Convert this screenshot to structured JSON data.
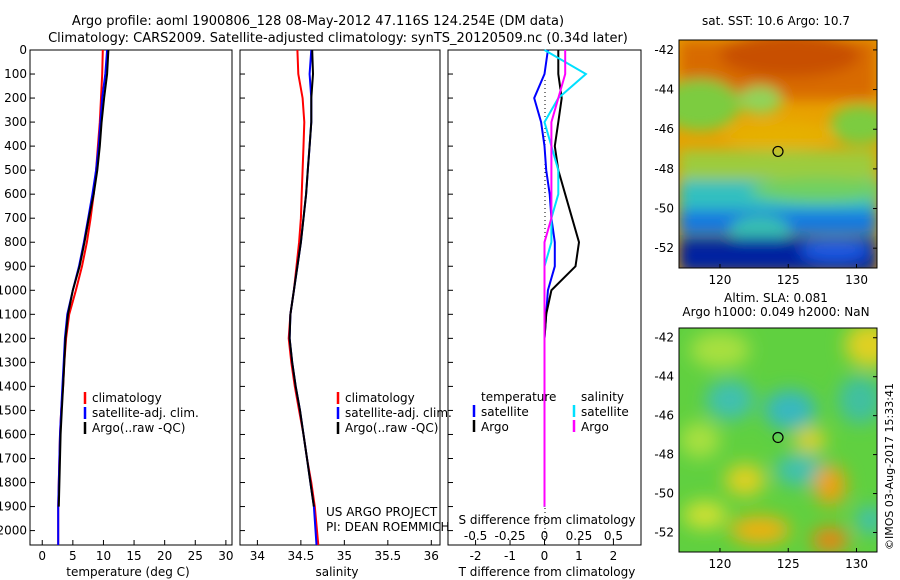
{
  "title": {
    "line1": "Argo profile: aoml 1900806_128 08-May-2012 47.116S 124.254E (DM data)",
    "line2": "Climatology: CARS2009. Satellite-adjusted climatology: synTS_20120509.nc (0.34d later)"
  },
  "colors": {
    "climatology": "#ff0000",
    "satellite": "#0000ff",
    "argo": "#000000",
    "sal_satellite": "#00e0ff",
    "sal_argo": "#ff00ff"
  },
  "panels": {
    "temperature": {
      "xlabel": "temperature (deg C)",
      "xticks": [
        "0",
        "5",
        "10",
        "15",
        "20",
        "25",
        "30"
      ],
      "legend": [
        "climatology",
        "satellite-adj. clim.",
        "Argo(..raw -QC)"
      ]
    },
    "salinity": {
      "xlabel": "salinity",
      "xticks": [
        "34",
        "34.5",
        "35",
        "35.5",
        "36"
      ],
      "legend": [
        "climatology",
        "satellite-adj. clim.",
        "Argo(..raw -QC)"
      ],
      "project_line1": "US ARGO PROJECT",
      "project_line2": "PI: DEAN ROEMMICH"
    },
    "difference": {
      "xlabel": "T difference from climatology",
      "top_label": "S difference from climatology",
      "top_ticks": [
        "-0.5",
        "-0.25",
        "0",
        "0.25",
        "0.5"
      ],
      "xticks": [
        "-2",
        "-1",
        "0",
        "1",
        "2"
      ],
      "legend_temp_title": "temperature",
      "legend_sal_title": "salinity",
      "legend_temp": [
        "satellite",
        "Argo"
      ],
      "legend_sal": [
        "satellite",
        "Argo"
      ]
    },
    "depth_ticks": [
      "0",
      "100",
      "200",
      "300",
      "400",
      "500",
      "600",
      "700",
      "800",
      "900",
      "1000",
      "1100",
      "1200",
      "1300",
      "1400",
      "1500",
      "1600",
      "1700",
      "1800",
      "1900",
      "2000"
    ]
  },
  "maps": {
    "sst_title": "sat. SST: 10.6  Argo: 10.7",
    "sla_title1": "Altim. SLA: 0.081",
    "sla_title2": "Argo h1000: 0.049 h2000: NaN",
    "lat_ticks": [
      "-42",
      "-44",
      "-46",
      "-48",
      "-50",
      "-52"
    ],
    "lon_ticks": [
      "120",
      "125",
      "130"
    ],
    "credit": "©IMOS 03-Aug-2017 15:33:41"
  },
  "chart_data": [
    {
      "type": "line",
      "title": "",
      "xlabel": "temperature (deg C)",
      "ylabel": "",
      "xlim": [
        -2,
        31
      ],
      "ylim": [
        2060,
        0
      ],
      "series": [
        {
          "name": "climatology",
          "x": [
            9.9,
            9.8,
            9.6,
            9.4,
            9.1,
            8.8,
            8.4,
            7.9,
            7.3,
            6.5,
            5.5,
            4.4,
            3.9,
            3.6,
            3.4,
            3.1,
            2.9,
            2.8,
            2.7,
            2.6,
            2.6
          ],
          "y": [
            0,
            100,
            200,
            300,
            400,
            500,
            600,
            700,
            800,
            900,
            1000,
            1100,
            1200,
            1300,
            1400,
            1500,
            1600,
            1700,
            1800,
            1900,
            2060
          ]
        },
        {
          "name": "satellite-adj. clim.",
          "x": [
            10.6,
            10.3,
            9.8,
            9.5,
            9.2,
            8.8,
            8.2,
            7.5,
            6.8,
            6.0,
            5.0,
            4.1,
            3.7,
            3.5,
            3.3,
            3.1,
            2.9,
            2.8,
            2.7,
            2.6,
            2.6
          ],
          "y": [
            0,
            100,
            200,
            300,
            400,
            500,
            600,
            700,
            800,
            900,
            1000,
            1100,
            1200,
            1300,
            1400,
            1500,
            1600,
            1700,
            1800,
            1900,
            2060
          ]
        },
        {
          "name": "Argo(..raw -QC)",
          "x": [
            10.8,
            10.6,
            10.1,
            9.7,
            9.4,
            9.0,
            8.4,
            7.6,
            6.9,
            6.1,
            5.0,
            4.2,
            3.8,
            3.6,
            3.4,
            3.2,
            3.0,
            2.9,
            2.8,
            2.7
          ],
          "y": [
            0,
            100,
            200,
            300,
            400,
            500,
            600,
            700,
            800,
            900,
            1000,
            1100,
            1200,
            1300,
            1400,
            1500,
            1600,
            1700,
            1800,
            1900
          ]
        }
      ]
    },
    {
      "type": "line",
      "title": "",
      "xlabel": "salinity",
      "ylabel": "",
      "xlim": [
        33.8,
        36.1
      ],
      "ylim": [
        2060,
        0
      ],
      "series": [
        {
          "name": "climatology",
          "x": [
            34.46,
            34.47,
            34.52,
            34.54,
            34.53,
            34.52,
            34.51,
            34.5,
            34.48,
            34.45,
            34.42,
            34.38,
            34.36,
            34.39,
            34.43,
            34.48,
            34.53,
            34.57,
            34.62,
            34.66,
            34.7
          ],
          "y": [
            0,
            100,
            200,
            300,
            400,
            500,
            600,
            700,
            800,
            900,
            1000,
            1100,
            1200,
            1300,
            1400,
            1500,
            1600,
            1700,
            1800,
            1900,
            2060
          ]
        },
        {
          "name": "satellite-adj. clim.",
          "x": [
            34.62,
            34.6,
            34.62,
            34.62,
            34.6,
            34.58,
            34.56,
            34.53,
            34.5,
            34.46,
            34.42,
            34.38,
            34.37,
            34.4,
            34.44,
            34.49,
            34.53,
            34.57,
            34.61,
            34.65,
            34.68
          ],
          "y": [
            0,
            100,
            200,
            300,
            400,
            500,
            600,
            700,
            800,
            900,
            1000,
            1100,
            1200,
            1300,
            1400,
            1500,
            1600,
            1700,
            1800,
            1900,
            2060
          ]
        },
        {
          "name": "Argo(..raw -QC)",
          "x": [
            34.63,
            34.64,
            34.62,
            34.62,
            34.6,
            34.58,
            34.56,
            34.53,
            34.5,
            34.46,
            34.42,
            34.38,
            34.37,
            34.4,
            34.44,
            34.49,
            34.53,
            34.57,
            34.61,
            34.65
          ],
          "y": [
            0,
            100,
            200,
            300,
            400,
            500,
            600,
            700,
            800,
            900,
            1000,
            1100,
            1200,
            1300,
            1400,
            1500,
            1600,
            1700,
            1800,
            1900
          ]
        }
      ]
    },
    {
      "type": "line",
      "title": "",
      "xlabel": "T difference from climatology",
      "ylabel": "",
      "xlim": [
        -2.8,
        2.8
      ],
      "ylim": [
        2060,
        0
      ],
      "series": [
        {
          "name": "temperature satellite",
          "x": [
            0.1,
            0.0,
            -0.3,
            -0.1,
            0.0,
            0.05,
            0.15,
            0.2,
            0.3,
            0.3,
            0.1,
            0.05,
            0.0,
            0.0,
            0.0,
            0.0,
            0.0,
            0.0,
            0.0,
            0.0
          ],
          "y": [
            0,
            100,
            200,
            300,
            400,
            500,
            600,
            700,
            800,
            900,
            1000,
            1100,
            1200,
            1300,
            1400,
            1500,
            1600,
            1700,
            1800,
            1900
          ]
        },
        {
          "name": "temperature Argo",
          "x": [
            0.4,
            0.4,
            0.5,
            0.4,
            0.3,
            0.4,
            0.6,
            0.8,
            1.0,
            0.9,
            0.2,
            0.05,
            0.0,
            0.0,
            0.0,
            0.0,
            0.0,
            0.0,
            0.0,
            0.0
          ],
          "y": [
            0,
            100,
            200,
            300,
            400,
            500,
            600,
            700,
            800,
            900,
            1000,
            1100,
            1200,
            1300,
            1400,
            1500,
            1600,
            1700,
            1800,
            1900
          ]
        },
        {
          "name": "salinity satellite",
          "x": [
            0.0,
            0.3,
            0.1,
            0.0,
            0.05,
            0.1,
            0.1,
            0.05,
            0.05,
            0.0,
            0.0,
            0.0,
            0.0,
            0.0,
            0.0,
            0.0,
            0.0,
            0.0,
            0.0,
            0.0
          ],
          "y": [
            0,
            100,
            200,
            300,
            400,
            500,
            600,
            700,
            800,
            900,
            1000,
            1100,
            1200,
            1300,
            1400,
            1500,
            1600,
            1700,
            1800,
            1900
          ]
        },
        {
          "name": "salinity Argo",
          "x": [
            0.15,
            0.15,
            0.1,
            0.05,
            0.05,
            0.05,
            0.05,
            0.05,
            0.0,
            0.0,
            0.0,
            0.0,
            0.0,
            0.0,
            0.0,
            0.0,
            0.0,
            0.0,
            0.0,
            0.0
          ],
          "y": [
            0,
            100,
            200,
            300,
            400,
            500,
            600,
            700,
            800,
            900,
            1000,
            1100,
            1200,
            1300,
            1400,
            1500,
            1600,
            1700,
            1800,
            1900
          ]
        }
      ]
    },
    {
      "type": "heatmap",
      "title": "sat. SST: 10.6  Argo: 10.7",
      "xlabel": "",
      "ylabel": "",
      "xlim": [
        117,
        131.5
      ],
      "ylim": [
        -53,
        -41.5
      ],
      "marker": [
        124.25,
        -47.12
      ]
    },
    {
      "type": "heatmap",
      "title": "Altim. SLA: 0.081",
      "xlabel": "",
      "ylabel": "",
      "xlim": [
        117,
        131.5
      ],
      "ylim": [
        -53,
        -41.5
      ],
      "marker": [
        124.25,
        -47.12
      ]
    }
  ]
}
